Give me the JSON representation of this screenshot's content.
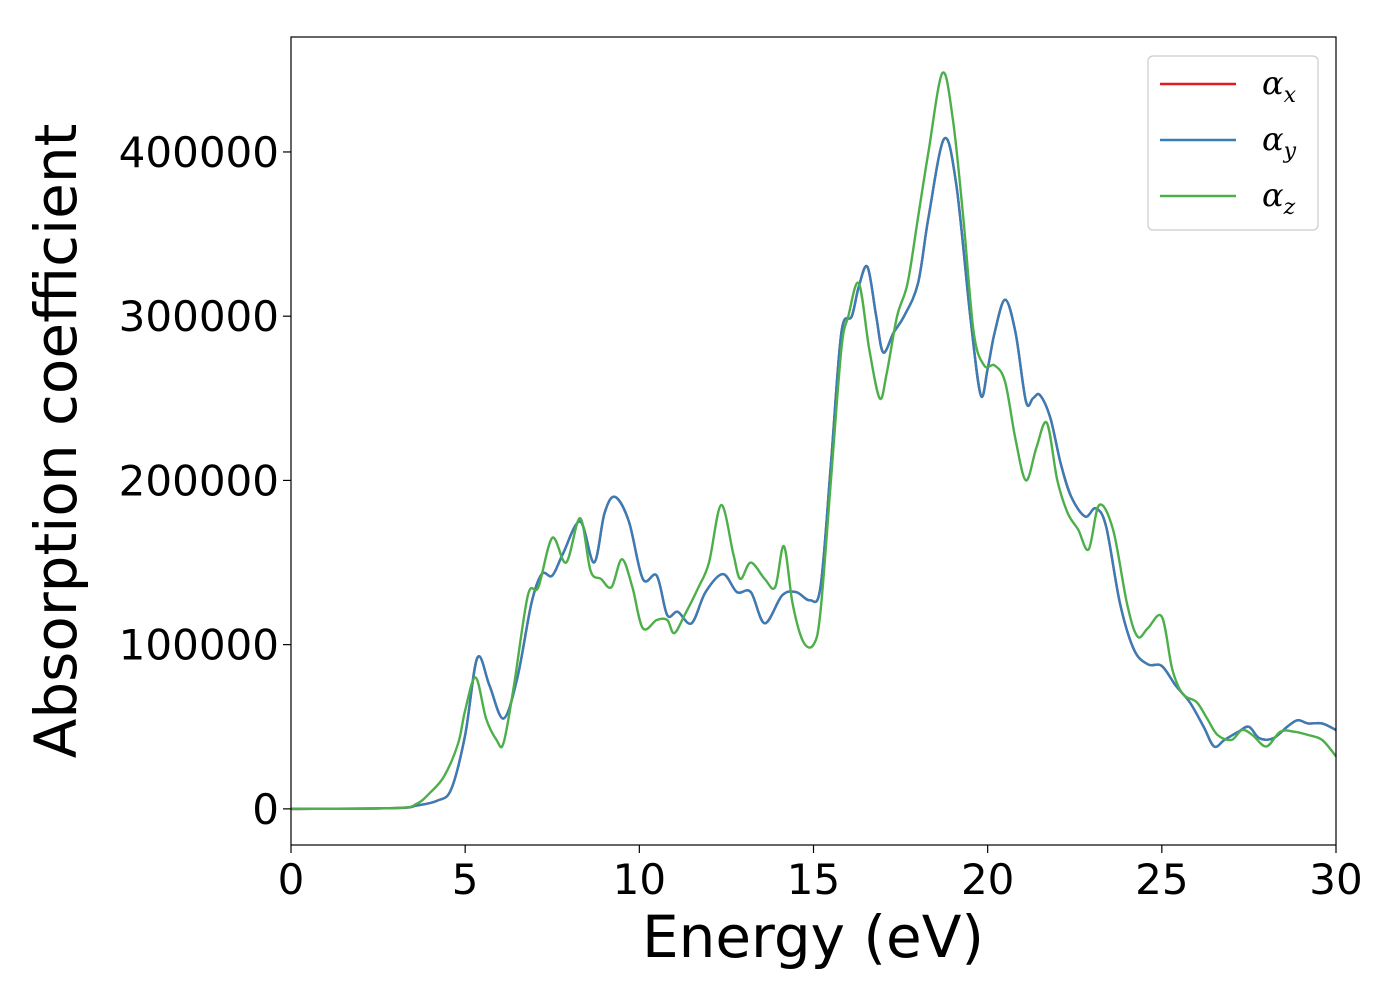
{
  "chart_data": {
    "type": "line",
    "title": "",
    "xlabel": "Energy (eV)",
    "ylabel": "Absorption coefficient",
    "xlim": [
      0,
      30
    ],
    "ylim": [
      -22000,
      470000
    ],
    "xticks": [
      0,
      5,
      10,
      15,
      20,
      25,
      30
    ],
    "yticks": [
      0,
      100000,
      200000,
      300000,
      400000
    ],
    "grid": false,
    "legend_position": "top-right",
    "series": [
      {
        "name": "α",
        "subscript": "x",
        "color": "#e41a1c",
        "x": [
          0,
          3,
          3.6,
          4.2,
          4.6,
          5.0,
          5.35,
          5.7,
          6.1,
          6.5,
          6.9,
          7.2,
          7.5,
          7.8,
          8.3,
          8.7,
          9.0,
          9.3,
          9.7,
          10.1,
          10.5,
          10.8,
          11.1,
          11.5,
          11.9,
          12.4,
          12.8,
          13.2,
          13.6,
          14.1,
          14.5,
          14.9,
          15.2,
          15.5,
          15.8,
          16.1,
          16.3,
          16.55,
          16.8,
          17.0,
          17.3,
          17.6,
          18.0,
          18.3,
          18.75,
          19.1,
          19.5,
          19.8,
          20.0,
          20.2,
          20.5,
          20.8,
          21.1,
          21.3,
          21.5,
          21.8,
          22.1,
          22.4,
          22.8,
          23.1,
          23.4,
          23.8,
          24.2,
          24.6,
          25.0,
          25.4,
          25.8,
          26.2,
          26.5,
          26.8,
          27.2,
          27.5,
          27.8,
          28.2,
          28.6,
          28.9,
          29.2,
          29.6,
          30.0
        ],
        "values": [
          0,
          500,
          2000,
          5000,
          12000,
          45000,
          92000,
          75000,
          55000,
          80000,
          125000,
          143000,
          142000,
          155000,
          175000,
          150000,
          180000,
          190000,
          175000,
          140000,
          142000,
          118000,
          120000,
          113000,
          132000,
          143000,
          132000,
          132000,
          113000,
          130000,
          132000,
          127000,
          135000,
          210000,
          290000,
          300000,
          318000,
          330000,
          300000,
          278000,
          290000,
          300000,
          320000,
          360000,
          408000,
          380000,
          300000,
          252000,
          268000,
          290000,
          310000,
          290000,
          248000,
          250000,
          252000,
          238000,
          210000,
          190000,
          178000,
          183000,
          172000,
          125000,
          97000,
          88000,
          87000,
          75000,
          65000,
          50000,
          38000,
          42000,
          47000,
          50000,
          43000,
          43000,
          50000,
          54000,
          52000,
          52000,
          48000
        ]
      },
      {
        "name": "α",
        "subscript": "y",
        "color": "#377eb8",
        "x": [
          0,
          3,
          3.6,
          4.2,
          4.6,
          5.0,
          5.35,
          5.7,
          6.1,
          6.5,
          6.9,
          7.2,
          7.5,
          7.8,
          8.3,
          8.7,
          9.0,
          9.3,
          9.7,
          10.1,
          10.5,
          10.8,
          11.1,
          11.5,
          11.9,
          12.4,
          12.8,
          13.2,
          13.6,
          14.1,
          14.5,
          14.9,
          15.2,
          15.5,
          15.8,
          16.1,
          16.3,
          16.55,
          16.8,
          17.0,
          17.3,
          17.6,
          18.0,
          18.3,
          18.75,
          19.1,
          19.5,
          19.8,
          20.0,
          20.2,
          20.5,
          20.8,
          21.1,
          21.3,
          21.5,
          21.8,
          22.1,
          22.4,
          22.8,
          23.1,
          23.4,
          23.8,
          24.2,
          24.6,
          25.0,
          25.4,
          25.8,
          26.2,
          26.5,
          26.8,
          27.2,
          27.5,
          27.8,
          28.2,
          28.6,
          28.9,
          29.2,
          29.6,
          30.0
        ],
        "values": [
          0,
          500,
          2000,
          5000,
          12000,
          45000,
          92000,
          75000,
          55000,
          80000,
          125000,
          143000,
          142000,
          155000,
          175000,
          150000,
          180000,
          190000,
          175000,
          140000,
          142000,
          118000,
          120000,
          113000,
          132000,
          143000,
          132000,
          132000,
          113000,
          130000,
          132000,
          127000,
          135000,
          210000,
          290000,
          300000,
          318000,
          330000,
          300000,
          278000,
          290000,
          300000,
          320000,
          360000,
          408000,
          380000,
          300000,
          252000,
          268000,
          290000,
          310000,
          290000,
          248000,
          250000,
          252000,
          238000,
          210000,
          190000,
          178000,
          183000,
          172000,
          125000,
          97000,
          88000,
          87000,
          75000,
          65000,
          50000,
          38000,
          42000,
          47000,
          50000,
          43000,
          43000,
          50000,
          54000,
          52000,
          52000,
          48000
        ]
      },
      {
        "name": "α",
        "subscript": "z",
        "color": "#4daf4a",
        "x": [
          0,
          3,
          3.6,
          4.0,
          4.4,
          4.8,
          5.0,
          5.3,
          5.6,
          5.9,
          6.1,
          6.4,
          6.8,
          7.1,
          7.5,
          7.9,
          8.3,
          8.6,
          8.9,
          9.2,
          9.5,
          9.8,
          10.1,
          10.5,
          10.8,
          11.0,
          11.3,
          11.7,
          12.0,
          12.35,
          12.7,
          12.9,
          13.2,
          13.6,
          13.9,
          14.15,
          14.4,
          14.7,
          15.0,
          15.2,
          15.5,
          15.8,
          16.0,
          16.3,
          16.6,
          16.9,
          17.1,
          17.4,
          17.7,
          18.0,
          18.3,
          18.7,
          19.0,
          19.3,
          19.6,
          19.9,
          20.2,
          20.5,
          20.8,
          21.1,
          21.4,
          21.7,
          22.0,
          22.3,
          22.6,
          22.9,
          23.2,
          23.6,
          24.0,
          24.3,
          24.6,
          25.0,
          25.3,
          25.6,
          26.0,
          26.3,
          26.6,
          27.0,
          27.3,
          27.6,
          28.0,
          28.4,
          28.8,
          29.2,
          29.6,
          30.0
        ],
        "values": [
          0,
          500,
          3000,
          10000,
          20000,
          40000,
          60000,
          80000,
          55000,
          42000,
          40000,
          75000,
          130000,
          135000,
          165000,
          150000,
          177000,
          145000,
          140000,
          135000,
          152000,
          135000,
          110000,
          115000,
          115000,
          107000,
          118000,
          135000,
          150000,
          185000,
          155000,
          140000,
          150000,
          140000,
          135000,
          160000,
          125000,
          102000,
          100000,
          120000,
          200000,
          280000,
          300000,
          320000,
          280000,
          250000,
          265000,
          300000,
          320000,
          360000,
          400000,
          448000,
          420000,
          360000,
          290000,
          270000,
          270000,
          260000,
          225000,
          200000,
          220000,
          235000,
          200000,
          180000,
          170000,
          158000,
          185000,
          170000,
          125000,
          105000,
          110000,
          117000,
          85000,
          70000,
          65000,
          55000,
          45000,
          42000,
          48000,
          45000,
          38000,
          47000,
          47000,
          45000,
          42000,
          32000
        ]
      }
    ]
  }
}
